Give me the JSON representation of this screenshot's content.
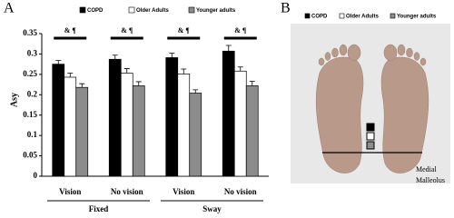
{
  "chart_data": {
    "type": "bar",
    "panel_label": "A",
    "y_label": "Asy",
    "categories": [
      "Vision",
      "No vision",
      "Vision",
      "No vision"
    ],
    "groups": [
      "Fixed",
      "Sway"
    ],
    "annotations": [
      "& ¶",
      "& ¶",
      "& ¶",
      "& ¶"
    ],
    "series": [
      {
        "name": "COPD",
        "color": "#000000",
        "values": [
          0.275,
          0.287,
          0.291,
          0.307
        ],
        "errors": [
          0.009,
          0.01,
          0.011,
          0.014
        ]
      },
      {
        "name": "Older Adults",
        "color": "#ffffff",
        "values": [
          0.243,
          0.253,
          0.251,
          0.258
        ],
        "errors": [
          0.01,
          0.011,
          0.012,
          0.01
        ]
      },
      {
        "name": "Younger adults",
        "color": "#8c8c8c",
        "values": [
          0.218,
          0.222,
          0.204,
          0.222
        ],
        "errors": [
          0.009,
          0.01,
          0.008,
          0.011
        ]
      }
    ],
    "ylim": [
      0,
      0.35
    ],
    "yticks": [
      0,
      0.05,
      0.1,
      0.15,
      0.2,
      0.25,
      0.3,
      0.35
    ]
  },
  "panel_b": {
    "panel_label": "B",
    "legend": [
      {
        "name": "COPD",
        "color": "#000000"
      },
      {
        "name": "Older Adults",
        "color": "#ffffff"
      },
      {
        "name": "Younger adults",
        "color": "#8c8c8c"
      }
    ],
    "marker_label": [
      "Medial",
      "Malleolus"
    ]
  }
}
